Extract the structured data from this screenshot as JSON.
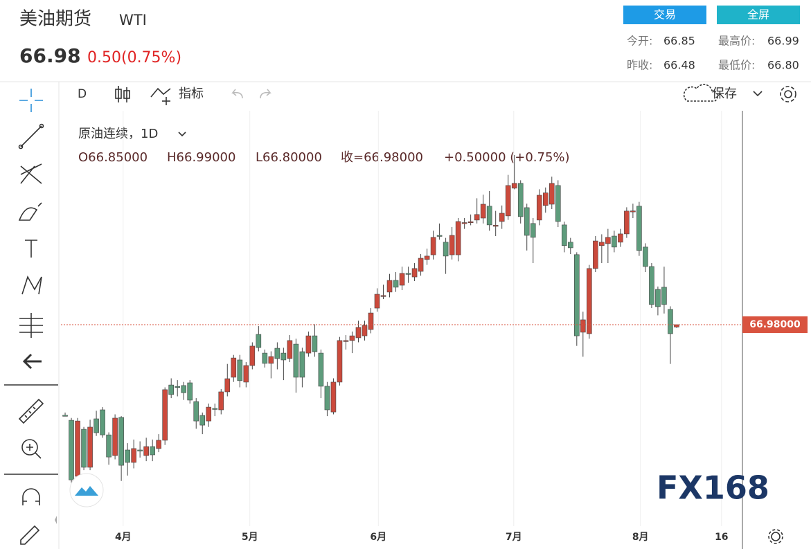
{
  "header": {
    "title": "美油期货",
    "symbol": "WTI",
    "price": "66.98",
    "change": "0.50(0.75%)",
    "buttons": [
      "交易",
      "全屏"
    ],
    "stats": [
      {
        "label": "今开:",
        "value": "66.85"
      },
      {
        "label": "最高价:",
        "value": "66.99"
      },
      {
        "label": "昨收:",
        "value": "66.48"
      },
      {
        "label": "最低价:",
        "value": "66.80"
      }
    ]
  },
  "toolbar": {
    "interval": "D",
    "indicators": "指标",
    "save": "保存"
  },
  "legend": {
    "name": "原油连续，1D",
    "open": "O66.85000",
    "high": "H66.99000",
    "low": "L66.80000",
    "close": "收=66.98000",
    "change": "+0.50000 (+0.75%)"
  },
  "watermark": "FX168",
  "chart_data": {
    "type": "candlestick",
    "up_color": "#cb4a3c",
    "down_color": "#5e9c7c",
    "open": [
      61.95,
      61.67,
      58.56,
      61.17,
      59.06,
      61.75,
      62.25,
      60.86,
      59.71,
      61.83,
      60.02,
      59.33,
      60.02,
      59.71,
      60.21,
      60.1,
      60.56,
      63.63,
      63.55,
      63.6,
      63.75,
      62.71,
      61.94,
      61.63,
      62.33,
      62.25,
      63.25,
      64.06,
      65.02,
      63.79,
      64.71,
      66.44,
      65.4,
      64.83,
      65.67,
      65.4,
      65.1,
      65.9,
      65.48,
      65.4,
      66.36,
      65.4,
      63.56,
      62.13,
      63.79,
      66.05,
      66.1,
      66.25,
      66.36,
      66.71,
      67.9,
      68.6,
      68.79,
      69.44,
      69.17,
      69.83,
      69.63,
      69.94,
      70.6,
      70.86,
      71.94,
      71.56,
      70.86,
      70.86,
      72.6,
      72.7,
      72.79,
      72.9,
      73.56,
      72.48,
      72.71,
      73.02,
      74.56,
      74.83,
      73.48,
      72.6,
      72.79,
      73.6,
      73.67,
      74.71,
      72.52,
      71.56,
      70.87,
      66.56,
      66.48,
      70.1,
      71.37,
      71.48,
      71.9,
      71.56,
      72.02,
      73.29,
      73.56,
      71.29,
      70.21,
      68.94,
      69.06,
      67.83,
      66.85
    ],
    "high": [
      62.1,
      61.8,
      61.8,
      61.3,
      61.7,
      62.2,
      62.4,
      61.0,
      62.0,
      61.9,
      60.4,
      60.6,
      60.5,
      60.7,
      60.6,
      60.9,
      63.5,
      64.0,
      63.9,
      63.8,
      63.9,
      62.9,
      62.1,
      62.6,
      62.6,
      63.4,
      64.8,
      65.3,
      65.3,
      64.9,
      66.0,
      66.9,
      65.6,
      65.5,
      66.0,
      65.7,
      66.4,
      66.2,
      65.7,
      66.6,
      67.0,
      65.6,
      63.8,
      64.0,
      66.3,
      66.4,
      66.6,
      67.2,
      67.2,
      67.9,
      69.0,
      69.2,
      69.8,
      69.9,
      70.2,
      70.2,
      70.4,
      70.9,
      71.2,
      72.2,
      72.6,
      71.8,
      72.4,
      72.9,
      72.9,
      73.1,
      74.0,
      74.2,
      74.4,
      73.3,
      73.6,
      75.3,
      76.4,
      75.0,
      73.7,
      72.9,
      74.5,
      74.6,
      75.2,
      75.0,
      72.7,
      71.8,
      71.0,
      67.7,
      70.3,
      71.9,
      72.0,
      72.3,
      72.2,
      72.3,
      73.5,
      73.7,
      73.8,
      71.5,
      70.4,
      69.1,
      70.2,
      68.0,
      66.99
    ],
    "low": [
      61.9,
      58.2,
      58.4,
      58.9,
      58.9,
      60.8,
      60.7,
      59.2,
      59.5,
      58.3,
      58.6,
      59.0,
      59.6,
      59.4,
      59.4,
      59.9,
      60.3,
      62.9,
      63.0,
      62.8,
      62.6,
      61.2,
      60.9,
      61.3,
      61.9,
      62.0,
      63.0,
      63.8,
      63.5,
      63.5,
      64.5,
      65.5,
      64.6,
      64.0,
      64.5,
      63.9,
      64.9,
      63.2,
      63.5,
      65.2,
      65.2,
      62.9,
      61.9,
      62.0,
      63.6,
      65.6,
      65.4,
      66.0,
      66.1,
      66.5,
      67.7,
      68.4,
      68.5,
      68.8,
      68.9,
      69.3,
      69.4,
      69.7,
      70.3,
      70.6,
      71.7,
      69.8,
      70.6,
      70.5,
      72.3,
      72.5,
      72.6,
      72.6,
      72.2,
      71.9,
      72.3,
      72.8,
      74.5,
      72.6,
      71.1,
      70.4,
      72.5,
      73.2,
      73.4,
      72.4,
      71.0,
      70.9,
      65.8,
      65.2,
      66.2,
      69.9,
      70.4,
      70.4,
      71.0,
      71.3,
      71.8,
      72.9,
      70.8,
      69.9,
      67.9,
      67.5,
      67.6,
      64.8,
      66.8
    ],
    "close": [
      61.93,
      58.36,
      61.63,
      59.06,
      61.29,
      60.98,
      60.86,
      59.63,
      61.79,
      59.17,
      59.33,
      60.1,
      60.0,
      60.21,
      59.75,
      60.56,
      63.37,
      63.1,
      63.5,
      63.2,
      62.79,
      61.63,
      61.4,
      62.4,
      62.3,
      63.25,
      63.98,
      65.13,
      63.87,
      64.71,
      65.79,
      65.71,
      64.83,
      65.21,
      65.1,
      65.02,
      66.1,
      64.06,
      64.06,
      66.36,
      65.48,
      63.56,
      62.25,
      63.79,
      66.1,
      66.1,
      66.36,
      66.83,
      66.94,
      67.63,
      68.67,
      68.6,
      69.44,
      69.06,
      69.83,
      69.8,
      70.1,
      70.67,
      70.79,
      71.83,
      71.9,
      70.79,
      71.94,
      72.71,
      72.65,
      72.7,
      73.1,
      73.67,
      72.52,
      72.5,
      73.17,
      74.71,
      74.83,
      72.98,
      71.94,
      71.83,
      74.17,
      74.3,
      74.83,
      72.71,
      71.37,
      71.25,
      66.36,
      67.25,
      70.1,
      71.63,
      71.56,
      71.83,
      71.29,
      72.02,
      73.29,
      73.3,
      71.1,
      70.21,
      68.1,
      67.98,
      68.1,
      66.48,
      66.98
    ],
    "price_line": {
      "value": 66.98,
      "label": "66.98000"
    },
    "ylim": [
      55.79,
      78.86
    ],
    "xlim": [
      -0.67,
      108.55
    ],
    "xticks": [
      {
        "value": 9.3,
        "label": "4月"
      },
      {
        "value": 29.6,
        "label": "5月"
      },
      {
        "value": 50.2,
        "label": "6月"
      },
      {
        "value": 71.9,
        "label": "7月"
      },
      {
        "value": 92.2,
        "label": "8月"
      },
      {
        "value": 105.2,
        "label": "16"
      }
    ],
    "grid": true
  }
}
